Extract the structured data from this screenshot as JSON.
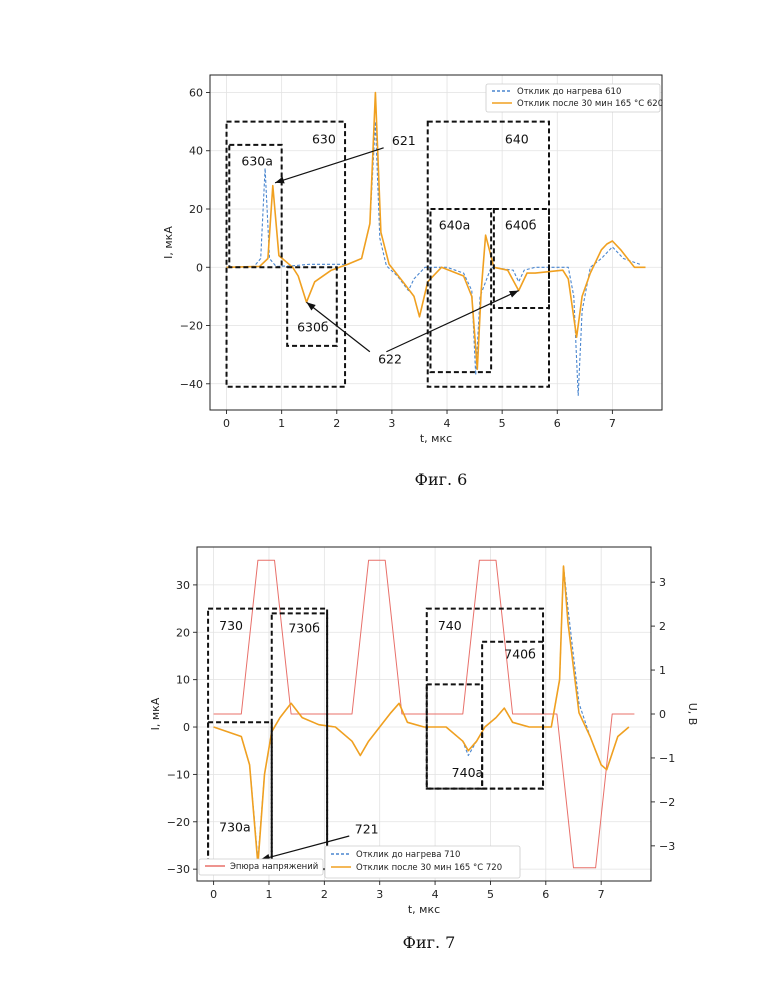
{
  "chart_data": [
    {
      "type": "line",
      "caption": "Фиг. 6",
      "xlabel": "t, мкс",
      "ylabel": "I, мкА",
      "xlim": [
        -0.3,
        7.9
      ],
      "ylim": [
        -49,
        66
      ],
      "xticks": [
        0,
        1,
        2,
        3,
        4,
        5,
        6,
        7
      ],
      "yticks": [
        -40,
        -20,
        0,
        20,
        40,
        60
      ],
      "grid": true,
      "legend_position": "top-right",
      "series": [
        {
          "name": "Отклик до нагрева 610",
          "color": "#4a86cf",
          "style": "dashed",
          "points": [
            [
              0,
              0
            ],
            [
              0.5,
              0.3
            ],
            [
              0.62,
              3
            ],
            [
              0.7,
              34
            ],
            [
              0.78,
              3
            ],
            [
              0.9,
              0.3
            ],
            [
              1.2,
              0.5
            ],
            [
              1.5,
              1
            ],
            [
              2.2,
              1
            ],
            [
              2.45,
              3
            ],
            [
              2.6,
              15
            ],
            [
              2.7,
              50
            ],
            [
              2.78,
              10
            ],
            [
              2.9,
              0.5
            ],
            [
              3.1,
              -3
            ],
            [
              3.3,
              -8
            ],
            [
              3.4,
              -4
            ],
            [
              3.6,
              0
            ],
            [
              4.0,
              0
            ],
            [
              4.3,
              -2
            ],
            [
              4.45,
              -8
            ],
            [
              4.52,
              -37
            ],
            [
              4.6,
              -10
            ],
            [
              4.8,
              0
            ],
            [
              5.2,
              -1
            ],
            [
              5.3,
              -5
            ],
            [
              5.4,
              -1
            ],
            [
              5.6,
              0
            ],
            [
              6.2,
              0
            ],
            [
              6.3,
              -10
            ],
            [
              6.38,
              -44
            ],
            [
              6.45,
              -15
            ],
            [
              6.6,
              0
            ],
            [
              6.8,
              3
            ],
            [
              7.0,
              7
            ],
            [
              7.2,
              3
            ],
            [
              7.5,
              1
            ]
          ]
        },
        {
          "name": "Отклик после 30 мин  165 °C 620",
          "color": "#f0a020",
          "style": "solid",
          "points": [
            [
              0,
              0
            ],
            [
              0.6,
              0.3
            ],
            [
              0.75,
              3
            ],
            [
              0.84,
              28
            ],
            [
              0.95,
              4
            ],
            [
              1.2,
              0
            ],
            [
              1.3,
              -3
            ],
            [
              1.45,
              -12
            ],
            [
              1.6,
              -5
            ],
            [
              1.9,
              -1
            ],
            [
              2.2,
              1
            ],
            [
              2.45,
              3
            ],
            [
              2.6,
              15
            ],
            [
              2.7,
              60
            ],
            [
              2.8,
              12
            ],
            [
              2.95,
              1
            ],
            [
              3.2,
              -5
            ],
            [
              3.4,
              -10
            ],
            [
              3.5,
              -17
            ],
            [
              3.65,
              -5
            ],
            [
              3.9,
              0
            ],
            [
              4.3,
              -3
            ],
            [
              4.45,
              -10
            ],
            [
              4.55,
              -35
            ],
            [
              4.62,
              -8
            ],
            [
              4.7,
              11
            ],
            [
              4.85,
              0
            ],
            [
              5.1,
              -1
            ],
            [
              5.3,
              -8
            ],
            [
              5.45,
              -2
            ],
            [
              5.6,
              -2
            ],
            [
              6.1,
              -1
            ],
            [
              6.2,
              -4
            ],
            [
              6.35,
              -24
            ],
            [
              6.45,
              -10
            ],
            [
              6.6,
              -2
            ],
            [
              6.8,
              6
            ],
            [
              6.9,
              8
            ],
            [
              7.0,
              9
            ],
            [
              7.15,
              6
            ],
            [
              7.4,
              0
            ],
            [
              7.6,
              0
            ]
          ]
        }
      ],
      "boxes": [
        {
          "label": "630",
          "x": [
            0.0,
            2.15
          ],
          "y": [
            -41,
            50
          ]
        },
        {
          "label": "630а",
          "x": [
            0.05,
            1.0
          ],
          "y": [
            0,
            42
          ]
        },
        {
          "label": "630б",
          "x": [
            1.1,
            2.0
          ],
          "y": [
            -27,
            0
          ]
        },
        {
          "label": "640",
          "x": [
            3.65,
            5.85
          ],
          "y": [
            -41,
            50
          ]
        },
        {
          "label": "640а",
          "x": [
            3.7,
            4.8
          ],
          "y": [
            -36,
            20
          ]
        },
        {
          "label": "640б",
          "x": [
            4.85,
            5.85
          ],
          "y": [
            -14,
            20
          ]
        }
      ],
      "labels": [
        {
          "text": "630",
          "x": 1.55,
          "y": 42.5
        },
        {
          "text": "630а",
          "x": 0.27,
          "y": 35
        },
        {
          "text": "621",
          "x": 3.0,
          "y": 42
        },
        {
          "text": "640",
          "x": 5.05,
          "y": 42.5
        },
        {
          "text": "640а",
          "x": 3.85,
          "y": 13
        },
        {
          "text": "640б",
          "x": 5.05,
          "y": 13
        },
        {
          "text": "630б",
          "x": 1.28,
          "y": -22
        },
        {
          "text": "622",
          "x": 2.75,
          "y": -33
        }
      ],
      "arrows": [
        {
          "from": [
            2.85,
            41
          ],
          "to": [
            0.88,
            29
          ]
        },
        {
          "from": [
            2.6,
            -29
          ],
          "to": [
            1.45,
            -12
          ]
        },
        {
          "from": [
            2.9,
            -29
          ],
          "to": [
            5.3,
            -8
          ]
        }
      ]
    },
    {
      "type": "line",
      "caption": "Фиг. 7",
      "xlabel": "t, мкс",
      "ylabel": "I, мкА",
      "ylabel_right": "U, В",
      "xlim": [
        -0.3,
        7.9
      ],
      "ylim": [
        -32.5,
        38
      ],
      "ylim_right": [
        -3.8,
        3.8
      ],
      "xticks": [
        0,
        1,
        2,
        3,
        4,
        5,
        6,
        7
      ],
      "yticks": [
        -30,
        -20,
        -10,
        0,
        10,
        20,
        30
      ],
      "yticks_right": [
        -3,
        -2,
        -1,
        0,
        1,
        2,
        3
      ],
      "grid": true,
      "legend_position": "bottom-right",
      "series": [
        {
          "name": "Отклик до нагрева 710",
          "color": "#4a86cf",
          "style": "dashed",
          "axis": "left",
          "points": [
            [
              0,
              0
            ],
            [
              0.5,
              -2
            ],
            [
              0.65,
              -8
            ],
            [
              0.8,
              -28
            ],
            [
              0.92,
              -10
            ],
            [
              1.05,
              -1
            ],
            [
              1.2,
              2
            ],
            [
              1.4,
              5
            ],
            [
              1.6,
              2
            ],
            [
              1.9,
              0.5
            ],
            [
              2.2,
              0
            ],
            [
              2.5,
              -3
            ],
            [
              2.65,
              -6
            ],
            [
              2.8,
              -3
            ],
            [
              3.0,
              0
            ],
            [
              3.2,
              3
            ],
            [
              3.35,
              5
            ],
            [
              3.5,
              1
            ],
            [
              3.8,
              0
            ],
            [
              4.2,
              0
            ],
            [
              4.5,
              -3
            ],
            [
              4.6,
              -6
            ],
            [
              4.75,
              -3
            ],
            [
              4.9,
              0
            ],
            [
              5.1,
              2
            ],
            [
              5.25,
              4
            ],
            [
              5.4,
              1
            ],
            [
              5.7,
              0
            ],
            [
              6.1,
              0
            ],
            [
              6.25,
              10
            ],
            [
              6.32,
              34
            ],
            [
              6.4,
              25
            ],
            [
              6.6,
              5
            ],
            [
              6.8,
              -2
            ],
            [
              6.9,
              -5
            ],
            [
              7.0,
              -8
            ],
            [
              7.1,
              -9
            ],
            [
              7.3,
              -2
            ],
            [
              7.5,
              0
            ]
          ]
        },
        {
          "name": "Отклик после 30 мин  165 °C 720",
          "color": "#f0a020",
          "style": "solid",
          "axis": "left",
          "points": [
            [
              0,
              0
            ],
            [
              0.5,
              -2
            ],
            [
              0.65,
              -8
            ],
            [
              0.8,
              -29
            ],
            [
              0.92,
              -10
            ],
            [
              1.05,
              -1
            ],
            [
              1.2,
              2
            ],
            [
              1.4,
              5
            ],
            [
              1.6,
              2
            ],
            [
              1.9,
              0.5
            ],
            [
              2.2,
              0
            ],
            [
              2.5,
              -3
            ],
            [
              2.65,
              -6
            ],
            [
              2.8,
              -3
            ],
            [
              3.0,
              0
            ],
            [
              3.2,
              3
            ],
            [
              3.35,
              5
            ],
            [
              3.5,
              1
            ],
            [
              3.8,
              0
            ],
            [
              4.2,
              0
            ],
            [
              4.5,
              -3
            ],
            [
              4.6,
              -5
            ],
            [
              4.75,
              -3
            ],
            [
              4.9,
              0
            ],
            [
              5.1,
              2
            ],
            [
              5.25,
              4
            ],
            [
              5.4,
              1
            ],
            [
              5.7,
              0
            ],
            [
              6.1,
              0
            ],
            [
              6.25,
              10
            ],
            [
              6.32,
              34
            ],
            [
              6.4,
              22
            ],
            [
              6.6,
              3
            ],
            [
              6.8,
              -2
            ],
            [
              6.9,
              -5
            ],
            [
              7.0,
              -8
            ],
            [
              7.1,
              -9
            ],
            [
              7.3,
              -2
            ],
            [
              7.5,
              0
            ]
          ]
        },
        {
          "name": "Эпюра напряжений",
          "color": "#e8706a",
          "style": "solid",
          "axis": "right",
          "points": [
            [
              0,
              0
            ],
            [
              0.5,
              0
            ],
            [
              0.8,
              3.5
            ],
            [
              1.1,
              3.5
            ],
            [
              1.4,
              0
            ],
            [
              2.0,
              0
            ],
            [
              2.5,
              0
            ],
            [
              2.8,
              3.5
            ],
            [
              3.1,
              3.5
            ],
            [
              3.4,
              0
            ],
            [
              4.0,
              0
            ],
            [
              4.5,
              0
            ],
            [
              4.8,
              3.5
            ],
            [
              5.1,
              3.5
            ],
            [
              5.4,
              0
            ],
            [
              6.2,
              0
            ],
            [
              6.5,
              -3.5
            ],
            [
              6.9,
              -3.5
            ],
            [
              7.2,
              0
            ],
            [
              7.6,
              0
            ]
          ]
        }
      ],
      "boxes": [
        {
          "label": "730",
          "x": [
            -0.1,
            2.05
          ],
          "y": [
            -30,
            25
          ]
        },
        {
          "label": "730б",
          "x": [
            1.05,
            2.05
          ],
          "y": [
            -30,
            24
          ]
        },
        {
          "label": "730а",
          "x": [
            -0.1,
            1.05
          ],
          "y": [
            -30,
            1
          ]
        },
        {
          "label": "740",
          "x": [
            3.85,
            5.95
          ],
          "y": [
            -13,
            25
          ]
        },
        {
          "label": "740а",
          "x": [
            3.85,
            4.85
          ],
          "y": [
            -13,
            9
          ]
        },
        {
          "label": "740б",
          "x": [
            4.85,
            5.95
          ],
          "y": [
            -13,
            18
          ]
        }
      ],
      "labels": [
        {
          "text": "730",
          "x": 0.1,
          "y": 20.5
        },
        {
          "text": "730б",
          "x": 1.35,
          "y": 20
        },
        {
          "text": "740",
          "x": 4.05,
          "y": 20.5
        },
        {
          "text": "740б",
          "x": 5.25,
          "y": 14.5
        },
        {
          "text": "740а",
          "x": 4.3,
          "y": -10.5
        },
        {
          "text": "730а",
          "x": 0.1,
          "y": -22
        },
        {
          "text": "721",
          "x": 2.55,
          "y": -22.5
        }
      ],
      "arrows": [
        {
          "from": [
            2.45,
            -23
          ],
          "to": [
            0.85,
            -28
          ]
        }
      ]
    }
  ]
}
